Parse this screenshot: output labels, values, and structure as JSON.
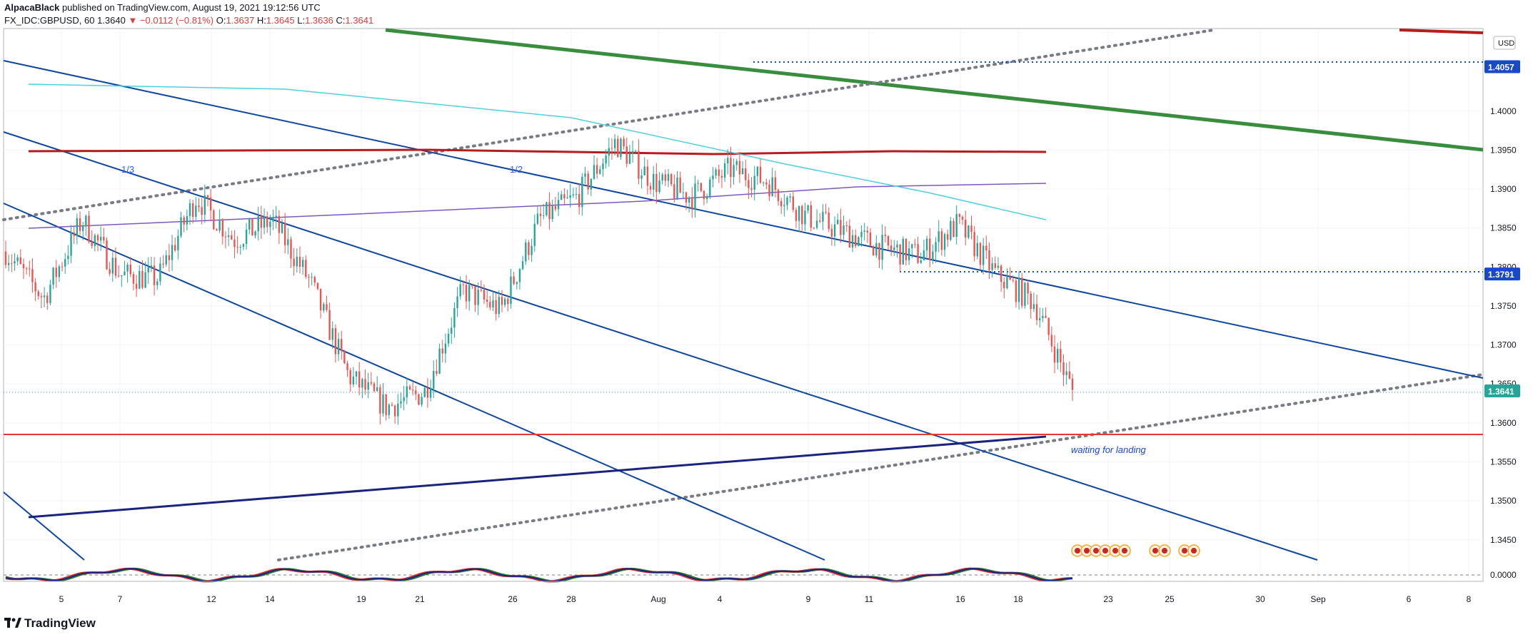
{
  "header": {
    "author": "AlpacaBlack",
    "published": "published on TradingView.com, August 19, 2021 19:12:56 UTC",
    "symbol": "FX_IDC:GBPUSD, 60",
    "last": "1.3640",
    "change_arrow": "▼",
    "change": "−0.0112 (−0.81%)",
    "o_label": "O:",
    "o_value": "1.3637",
    "h_label": "H:",
    "h_value": "1.3645",
    "l_label": "L:",
    "l_value": "1.3636",
    "c_label": "C:",
    "c_value": "1.3641"
  },
  "footer": {
    "brand": "TradingView",
    "logo_icon": "tradingview-logo-icon"
  },
  "chart_data": {
    "type": "line",
    "currency_label": "USD",
    "x_ticks": [
      "5",
      "7",
      "12",
      "14",
      "19",
      "21",
      "26",
      "28",
      "Aug",
      "4",
      "9",
      "11",
      "16",
      "18",
      "23",
      "25",
      "30",
      "Sep",
      "6",
      "8"
    ],
    "y_ticks": [
      "1.4000",
      "1.3950",
      "1.3900",
      "1.3850",
      "1.3800",
      "1.3750",
      "1.3700",
      "1.3650",
      "1.3600",
      "1.3550",
      "1.3500",
      "1.3450"
    ],
    "ylim": [
      1.3415,
      1.4095
    ],
    "price_labels": [
      {
        "value": 1.4057,
        "text": "1.4057",
        "color": "#1848cc"
      },
      {
        "value": 1.3791,
        "text": "1.3791",
        "color": "#1848cc"
      },
      {
        "value": 1.3641,
        "text": "1.3641",
        "color": "#26a69a"
      }
    ],
    "indicator_label": "0.0000",
    "annotations": [
      "1/3",
      "1/2",
      "waiting for landing"
    ],
    "series": [
      {
        "style": "candles",
        "up_color": "#26a69a",
        "down_color": "#ef5350",
        "x": [
          "Jul 2",
          "Jul 5",
          "Jul 6",
          "Jul 7",
          "Jul 9",
          "Jul 12",
          "Jul 13",
          "Jul 14",
          "Jul 16",
          "Jul 19",
          "Jul 20",
          "Jul 21",
          "Jul 23",
          "Jul 26",
          "Jul 27",
          "Jul 28",
          "Jul 30",
          "Aug 2",
          "Aug 3",
          "Aug 4",
          "Aug 6",
          "Aug 9",
          "Aug 10",
          "Aug 11",
          "Aug 13",
          "Aug 16",
          "Aug 17",
          "Aug 18",
          "Aug 19"
        ],
        "values": [
          1.382,
          1.376,
          1.386,
          1.379,
          1.3785,
          1.389,
          1.3835,
          1.386,
          1.378,
          1.366,
          1.362,
          1.364,
          1.377,
          1.3745,
          1.386,
          1.389,
          1.396,
          1.391,
          1.389,
          1.3925,
          1.391,
          1.3865,
          1.3845,
          1.3825,
          1.3815,
          1.3855,
          1.379,
          1.3755,
          1.3641
        ]
      }
    ]
  }
}
